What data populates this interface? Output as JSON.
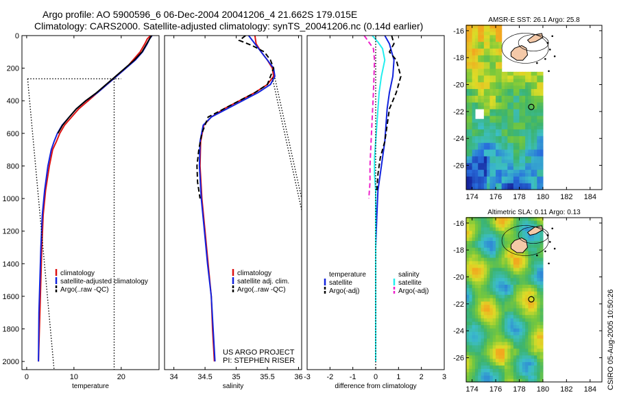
{
  "header": {
    "line1": "Argo profile: AO 5900596_6 06-Dec-2004 20041206_4 21.662S 179.015E",
    "line2": "Climatology: CARS2000. Satellite-adjusted climatology: synTS_20041206.nc (0.14d earlier)"
  },
  "footer": {
    "project": "US ARGO PROJECT",
    "pi": "PI: STEPHEN RISER",
    "stamp": "CSIRO 05-Aug-2005 10:50:26"
  },
  "colors": {
    "climatology": "#dd1111",
    "satellite": "#1122dd",
    "argo": "#000000",
    "satellite_salinity": "#22eeee",
    "argo_salinity": "#ee22cc"
  },
  "chart_data": [
    {
      "id": "temperature",
      "type": "line",
      "xlabel": "temperature",
      "xlim": [
        -1,
        28
      ],
      "ylim": [
        2050,
        0
      ],
      "xticks": [
        0,
        10,
        20
      ],
      "yticks": [
        0,
        200,
        400,
        600,
        800,
        1000,
        1200,
        1400,
        1600,
        1800,
        2000
      ],
      "legend": {
        "position": "bottom",
        "entries": [
          "climatology",
          "satellite-adjusted climatology",
          "Argo(..raw -QC)"
        ]
      },
      "series": [
        {
          "name": "climatology",
          "color": "#dd1111",
          "style": "solid",
          "x": [
            26.2,
            25.5,
            25,
            24,
            22.5,
            21,
            19,
            17,
            15,
            13,
            11,
            9.5,
            8,
            7,
            6.3,
            5.5,
            4.8,
            4,
            3.5,
            3.2,
            3,
            2.8,
            2.6,
            2.5
          ],
          "y": [
            0,
            20,
            50,
            100,
            150,
            200,
            250,
            300,
            350,
            400,
            450,
            500,
            550,
            600,
            650,
            700,
            800,
            950,
            1100,
            1300,
            1500,
            1700,
            1900,
            2000
          ]
        },
        {
          "name": "satellite-adjusted climatology",
          "color": "#1122dd",
          "style": "solid",
          "x": [
            26.5,
            26,
            25.5,
            24.5,
            23,
            21,
            19,
            17,
            15,
            12.5,
            10.5,
            9,
            7.5,
            6.5,
            5.8,
            5.2,
            4.5,
            3.8,
            3.3,
            3,
            2.8,
            2.6,
            2.5
          ],
          "y": [
            0,
            20,
            50,
            100,
            150,
            200,
            250,
            300,
            350,
            400,
            450,
            500,
            550,
            600,
            650,
            700,
            800,
            950,
            1100,
            1300,
            1500,
            1700,
            2000
          ]
        },
        {
          "name": "Argo(..raw -QC)",
          "color": "#000000",
          "style": "solid",
          "x": [
            26.4,
            25.8,
            25.2,
            24.4,
            22.8,
            20.8,
            18.8,
            16.8,
            14.8,
            12.5,
            10.5,
            9,
            7.6,
            6.6
          ],
          "y": [
            0,
            30,
            60,
            100,
            150,
            200,
            250,
            300,
            350,
            400,
            450,
            500,
            550,
            600
          ]
        },
        {
          "name": "",
          "color": "#000000",
          "style": "dotted",
          "x": [
            0.2,
            5.8
          ],
          "y": [
            265,
            2050
          ]
        },
        {
          "name": "",
          "color": "#000000",
          "style": "dotted",
          "x": [
            0.2,
            20
          ],
          "y": [
            265,
            265
          ]
        },
        {
          "name": "",
          "color": "#000000",
          "style": "dotted",
          "x": [
            18.5,
            18.5
          ],
          "y": [
            265,
            2050
          ]
        }
      ]
    },
    {
      "id": "salinity",
      "type": "line",
      "xlabel": "salinity",
      "xlim": [
        33.85,
        36.05
      ],
      "ylim": [
        2050,
        0
      ],
      "xticks": [
        34,
        34.5,
        35,
        35.5,
        36
      ],
      "legend": {
        "position": "bottom",
        "entries": [
          "climatology",
          "satellite adj. clim.",
          "Argo(..raw -QC)"
        ]
      },
      "series": [
        {
          "name": "climatology",
          "color": "#dd1111",
          "style": "solid",
          "x": [
            35.3,
            35.32,
            35.4,
            35.5,
            35.58,
            35.6,
            35.5,
            35.3,
            35.05,
            34.8,
            34.6,
            34.48,
            34.43,
            34.42,
            34.45,
            34.5,
            34.55,
            34.6,
            34.62,
            34.65
          ],
          "y": [
            0,
            50,
            100,
            150,
            200,
            250,
            300,
            350,
            400,
            450,
            500,
            550,
            650,
            800,
            1000,
            1200,
            1400,
            1600,
            1800,
            2000
          ]
        },
        {
          "name": "satellite adj. clim.",
          "color": "#1122dd",
          "style": "solid",
          "x": [
            35.2,
            35.3,
            35.4,
            35.5,
            35.6,
            35.62,
            35.55,
            35.35,
            35.1,
            34.85,
            34.6,
            34.47,
            34.42,
            34.41,
            34.44,
            34.49,
            34.54,
            34.6,
            34.63,
            34.66
          ],
          "y": [
            0,
            50,
            100,
            150,
            200,
            250,
            300,
            350,
            400,
            450,
            500,
            550,
            650,
            800,
            1000,
            1200,
            1400,
            1600,
            1800,
            2000
          ]
        },
        {
          "name": "Argo(..raw -QC)",
          "color": "#000000",
          "style": "dashed",
          "x": [
            35.15,
            35.05,
            35.25,
            35.45,
            35.55,
            35.6,
            35.5,
            35.3,
            35.05,
            34.8,
            34.55,
            34.45,
            34.4,
            34.37,
            34.38,
            34.42
          ],
          "y": [
            0,
            30,
            60,
            100,
            150,
            200,
            300,
            350,
            400,
            450,
            500,
            600,
            700,
            800,
            900,
            1000
          ]
        },
        {
          "name": "",
          "color": "#000000",
          "style": "dotted",
          "x": [
            35.58,
            36.05
          ],
          "y": [
            260,
            1070
          ]
        },
        {
          "name": "",
          "color": "#000000",
          "style": "dotted",
          "x": [
            35.62,
            36.05
          ],
          "y": [
            260,
            1000
          ]
        }
      ]
    },
    {
      "id": "difference",
      "type": "line",
      "xlabel": "difference from climatology",
      "xlim": [
        -3,
        3
      ],
      "ylim": [
        2050,
        0
      ],
      "xticks": [
        -3,
        -2,
        -1,
        0,
        1,
        2,
        3
      ],
      "legend": {
        "position": "bottom",
        "left_title": "temperature",
        "right_title": "salinity",
        "left_entries": [
          "satellite",
          "Argo(-adj)"
        ],
        "right_entries": [
          "satellite",
          "Argo(-adj)"
        ]
      },
      "series": [
        {
          "name": "satellite",
          "group": "temperature",
          "color": "#1122dd",
          "style": "solid",
          "x": [
            0.4,
            0.6,
            0.7,
            0.8,
            0.75,
            0.6,
            0.5,
            0.45,
            0.4,
            0.3,
            0.2,
            0.1,
            0.05,
            0,
            0,
            0,
            0
          ],
          "y": [
            0,
            50,
            100,
            150,
            250,
            350,
            450,
            550,
            650,
            750,
            850,
            950,
            1100,
            1300,
            1500,
            1800,
            2000
          ]
        },
        {
          "name": "Argo(-adj)",
          "group": "temperature",
          "color": "#000000",
          "style": "dashed",
          "x": [
            0.7,
            0.8,
            0.6,
            0.9,
            1.1,
            0.9,
            0.6,
            0.5,
            0.4,
            0.2,
            0.1,
            0.05
          ],
          "y": [
            0,
            50,
            100,
            150,
            250,
            350,
            450,
            550,
            650,
            750,
            850,
            950
          ]
        },
        {
          "name": "satellite",
          "group": "salinity",
          "color": "#22eeee",
          "style": "solid",
          "x": [
            -0.15,
            0.1,
            0.3,
            0.4,
            0.25,
            0.15,
            0.1,
            0.05,
            0,
            -0.05,
            -0.05,
            0,
            0,
            0
          ],
          "y": [
            0,
            40,
            80,
            150,
            250,
            350,
            450,
            550,
            650,
            750,
            850,
            950,
            1200,
            2000
          ]
        },
        {
          "name": "Argo(-adj)",
          "group": "salinity",
          "color": "#ee22cc",
          "style": "dashed",
          "x": [
            -0.5,
            -0.3,
            -0.1,
            -0.05,
            -0.1,
            -0.15,
            -0.2,
            -0.25,
            -0.25,
            -0.3
          ],
          "y": [
            0,
            40,
            80,
            150,
            350,
            500,
            650,
            800,
            900,
            1000
          ]
        },
        {
          "name": "",
          "color": "#000000",
          "style": "dotted",
          "x": [
            0,
            0
          ],
          "y": [
            0,
            2050
          ]
        }
      ]
    },
    {
      "id": "sst",
      "type": "heatmap",
      "title": "AMSR-E SST: 26.1 Argo: 25.8",
      "xlim": [
        173.5,
        185
      ],
      "ylim": [
        -27.8,
        -15.6
      ],
      "xticks": [
        174,
        176,
        178,
        180,
        182,
        184
      ],
      "yticks": [
        -16,
        -18,
        -20,
        -22,
        -24,
        -26
      ],
      "data_extent_lon": [
        173.5,
        180
      ],
      "argo_position": {
        "lon": 179.015,
        "lat": -21.662
      }
    },
    {
      "id": "sla",
      "type": "heatmap",
      "title": "Altimetric SLA: 0.11 Argo: 0.13",
      "xlim": [
        173.5,
        185
      ],
      "ylim": [
        -27.8,
        -15.6
      ],
      "xticks": [
        174,
        176,
        178,
        180,
        182,
        184
      ],
      "yticks": [
        -16,
        -18,
        -20,
        -22,
        -24,
        -26
      ],
      "data_extent_lon": [
        173.5,
        180
      ],
      "argo_position": {
        "lon": 179.015,
        "lat": -21.662
      }
    }
  ]
}
